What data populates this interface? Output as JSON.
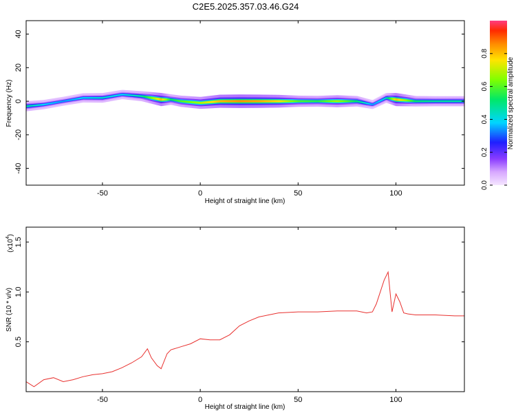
{
  "title": "C2E5.2025.357.03.46.G24",
  "chart_data": [
    {
      "type": "heatmap",
      "xlabel": "Height of straight line (km)",
      "ylabel": "Frequency (Hz)",
      "xlim": [
        -89,
        135
      ],
      "ylim": [
        -50,
        48
      ],
      "x_ticks": [
        -50,
        0,
        50,
        100
      ],
      "y_ticks": [
        -40,
        -20,
        0,
        20,
        40
      ],
      "grid": false,
      "colorbar": {
        "label": "Normalized spectral amplitude",
        "ticks": [
          "0.0",
          "0.2",
          "0.4",
          "0.6",
          "0.8"
        ],
        "range": [
          0,
          1
        ]
      },
      "ridge": [
        {
          "x": -89,
          "freq": -3,
          "amp": 0.55
        },
        {
          "x": -80,
          "freq": -2,
          "amp": 0.45
        },
        {
          "x": -70,
          "freq": 0,
          "amp": 0.4
        },
        {
          "x": -60,
          "freq": 2,
          "amp": 0.45
        },
        {
          "x": -50,
          "freq": 2,
          "amp": 0.5
        },
        {
          "x": -40,
          "freq": 4,
          "amp": 0.45
        },
        {
          "x": -30,
          "freq": 3,
          "amp": 0.55
        },
        {
          "x": -20,
          "freq": 1,
          "amp": 0.95
        },
        {
          "x": -15,
          "freq": 1,
          "amp": 0.6
        },
        {
          "x": -10,
          "freq": 0,
          "amp": 0.7
        },
        {
          "x": 0,
          "freq": -1,
          "amp": 0.8
        },
        {
          "x": 10,
          "freq": 0,
          "amp": 0.95
        },
        {
          "x": 20,
          "freq": 0,
          "amp": 1.0
        },
        {
          "x": 30,
          "freq": 0,
          "amp": 0.97
        },
        {
          "x": 40,
          "freq": 0,
          "amp": 0.9
        },
        {
          "x": 50,
          "freq": 0,
          "amp": 0.7
        },
        {
          "x": 60,
          "freq": 0,
          "amp": 0.65
        },
        {
          "x": 70,
          "freq": 0,
          "amp": 0.8
        },
        {
          "x": 80,
          "freq": 0,
          "amp": 0.6
        },
        {
          "x": 88,
          "freq": -2,
          "amp": 0.4
        },
        {
          "x": 95,
          "freq": 2,
          "amp": 0.5
        },
        {
          "x": 100,
          "freq": 1,
          "amp": 0.95
        },
        {
          "x": 110,
          "freq": 0,
          "amp": 0.6
        },
        {
          "x": 120,
          "freq": 0,
          "amp": 0.55
        },
        {
          "x": 135,
          "freq": 0,
          "amp": 0.55
        }
      ]
    },
    {
      "type": "line",
      "xlabel": "Height of straight line (km)",
      "ylabel": "SNR (10 * v/v)",
      "y_multiplier": "(x10",
      "y_multiplier_exp": "4",
      "y_multiplier_close": ")",
      "xlim": [
        -89,
        135
      ],
      "ylim": [
        0,
        16500
      ],
      "x_ticks": [
        -50,
        0,
        50,
        100
      ],
      "y_ticks": [
        "0.5",
        "1.0",
        "1.5"
      ],
      "grid": false,
      "series": [
        {
          "color": "#e8302e",
          "x": [
            -89,
            -85,
            -80,
            -75,
            -70,
            -65,
            -60,
            -55,
            -50,
            -45,
            -40,
            -35,
            -30,
            -27,
            -25,
            -22,
            -20,
            -17,
            -15,
            -10,
            -5,
            0,
            5,
            10,
            15,
            20,
            25,
            30,
            35,
            40,
            50,
            60,
            70,
            80,
            85,
            88,
            90,
            92,
            94,
            96,
            98,
            100,
            102,
            104,
            106,
            110,
            120,
            130,
            135
          ],
          "y": [
            1000,
            500,
            1200,
            1400,
            1000,
            1200,
            1500,
            1700,
            1800,
            2000,
            2400,
            2900,
            3500,
            4300,
            3400,
            2600,
            2300,
            3800,
            4200,
            4500,
            4800,
            5300,
            5200,
            5200,
            5700,
            6600,
            7100,
            7500,
            7700,
            7900,
            8000,
            8000,
            8100,
            8100,
            7900,
            8000,
            8800,
            10000,
            11200,
            12000,
            8000,
            9800,
            9000,
            7900,
            7800,
            7700,
            7700,
            7600,
            7600
          ]
        }
      ]
    }
  ]
}
